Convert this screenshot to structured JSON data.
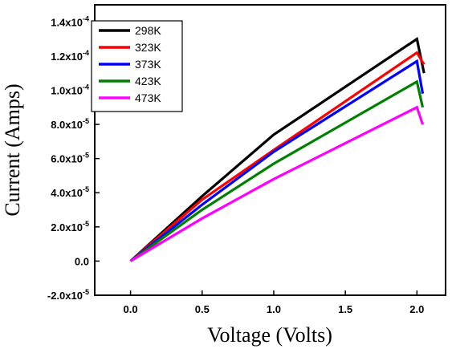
{
  "chart_data": {
    "type": "line",
    "xlabel": "Voltage (Volts)",
    "ylabel": "Current (Amps)",
    "xlim": [
      -0.25,
      2.2
    ],
    "ylim": [
      -2e-05,
      0.00015
    ],
    "xticks": [
      {
        "value": 0.0,
        "label": "0.0"
      },
      {
        "value": 0.5,
        "label": "0.5"
      },
      {
        "value": 1.0,
        "label": "1.0"
      },
      {
        "value": 1.5,
        "label": "1.5"
      },
      {
        "value": 2.0,
        "label": "2.0"
      }
    ],
    "yticks": [
      {
        "value": -2e-05,
        "mant": "-2.0x10",
        "exp": "-5"
      },
      {
        "value": 0.0,
        "mant": "0.0",
        "exp": ""
      },
      {
        "value": 2e-05,
        "mant": "2.0x10",
        "exp": "-5"
      },
      {
        "value": 4e-05,
        "mant": "4.0x10",
        "exp": "-5"
      },
      {
        "value": 6e-05,
        "mant": "6.0x10",
        "exp": "-5"
      },
      {
        "value": 8e-05,
        "mant": "8.0x10",
        "exp": "-5"
      },
      {
        "value": 0.0001,
        "mant": "1.0x10",
        "exp": "-4"
      },
      {
        "value": 0.00012,
        "mant": "1.2x10",
        "exp": "-4"
      },
      {
        "value": 0.00014,
        "mant": "1.4x10",
        "exp": "-4"
      }
    ],
    "legend_position": "top-left",
    "series": [
      {
        "name": "298K",
        "color": "#000000",
        "x": [
          0.0,
          0.5,
          1.0,
          2.0,
          2.05
        ],
        "y": [
          0.0,
          3.8e-05,
          7.4e-05,
          0.00013,
          0.00011
        ]
      },
      {
        "name": "323K",
        "color": "#ff0000",
        "x": [
          0.0,
          0.5,
          1.0,
          2.0,
          2.05
        ],
        "y": [
          0.0,
          3.6e-05,
          6.5e-05,
          0.000122,
          0.000115
        ]
      },
      {
        "name": "373K",
        "color": "#0000ff",
        "x": [
          0.0,
          0.5,
          1.0,
          2.0,
          2.04
        ],
        "y": [
          0.0,
          3.3e-05,
          6.4e-05,
          0.000117,
          9.8e-05
        ]
      },
      {
        "name": "423K",
        "color": "#008000",
        "x": [
          0.0,
          0.5,
          1.0,
          2.0,
          2.04
        ],
        "y": [
          0.0,
          3e-05,
          5.7e-05,
          0.000105,
          9e-05
        ]
      },
      {
        "name": "473K",
        "color": "#ff00ff",
        "x": [
          0.0,
          0.5,
          1.0,
          2.0,
          2.04
        ],
        "y": [
          0.0,
          2.5e-05,
          4.8e-05,
          9e-05,
          8e-05
        ]
      }
    ]
  }
}
